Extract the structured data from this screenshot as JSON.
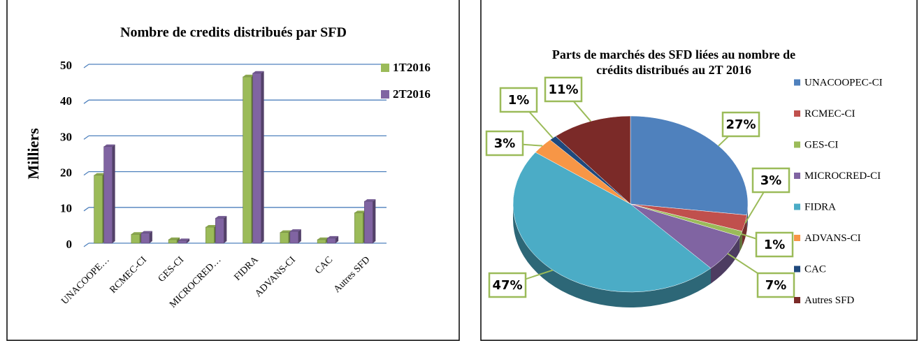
{
  "chart_data": [
    {
      "type": "bar",
      "title": "Nombre de credits distribués par SFD",
      "ylabel": "Milliers",
      "categories": [
        "UNACOOPE…",
        "RCMEC-CI",
        "GES-CI",
        "MICROCRED…",
        "FIDRA",
        "ADVANS-CI",
        "CAC",
        "Autres SFD"
      ],
      "series": [
        {
          "name": "1T2016",
          "color": "#9bbb59",
          "values": [
            19,
            2.5,
            1,
            4.5,
            46.5,
            3,
            1,
            8.5
          ]
        },
        {
          "name": "2T2016",
          "color": "#8064a2",
          "values": [
            27,
            2.8,
            0.7,
            7,
            47.5,
            3.3,
            1.4,
            11.7
          ]
        }
      ],
      "ylim": [
        0,
        50
      ],
      "yticks": [
        0,
        10,
        20,
        30,
        40,
        50
      ],
      "grid": true,
      "legend": "top-right"
    },
    {
      "type": "pie",
      "title": [
        "Parts de marchés des SFD liées au nombre de",
        "crédits distribués au 2T 2016"
      ],
      "categories": [
        "UNACOOPEC-CI",
        "RCMEC-CI",
        "GES-CI",
        "MICROCRED-CI",
        "FIDRA",
        "ADVANS-CI",
        "CAC",
        "Autres SFD"
      ],
      "values": [
        27,
        3,
        1,
        7,
        47,
        3,
        1,
        11
      ],
      "value_labels": [
        "27%",
        "3%",
        "1%",
        "7%",
        "47%",
        "3%",
        "1%",
        "11%"
      ],
      "colors": [
        "#4f81bd",
        "#c0504d",
        "#9bbb59",
        "#8064a2",
        "#4bacc6",
        "#f79646",
        "#1f497d",
        "#7b2a28"
      ],
      "legend": "right"
    }
  ]
}
